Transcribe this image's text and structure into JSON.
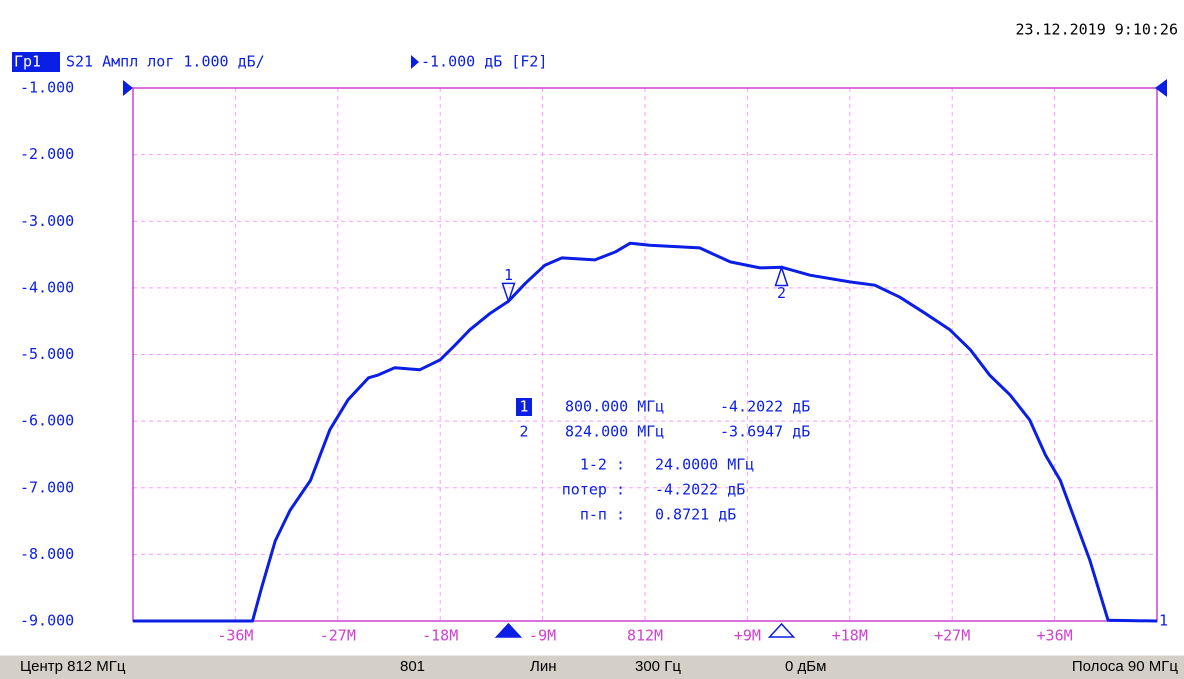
{
  "timestamp": "23.12.2019 9:10:26",
  "chart_data": {
    "type": "line",
    "trace_label": "Гр1",
    "title": "S21 Ампл лог 1.000 дБ/",
    "reference": "-1.000 дБ [F2]",
    "channel": "1",
    "xlim": [
      767,
      857
    ],
    "ylim": [
      -9,
      -1
    ],
    "grid": true,
    "xticks": [
      {
        "value": 776,
        "label": "-36M"
      },
      {
        "value": 785,
        "label": "-27M"
      },
      {
        "value": 794,
        "label": "-18M"
      },
      {
        "value": 803,
        "label": "-9M"
      },
      {
        "value": 812,
        "label": "812M"
      },
      {
        "value": 821,
        "label": "+9M"
      },
      {
        "value": 830,
        "label": "+18M"
      },
      {
        "value": 839,
        "label": "+27M"
      },
      {
        "value": 848,
        "label": "+36M"
      }
    ],
    "yticks": [
      {
        "value": -1,
        "label": "-1.000"
      },
      {
        "value": -2,
        "label": "-2.000"
      },
      {
        "value": -3,
        "label": "-3.000"
      },
      {
        "value": -4,
        "label": "-4.000"
      },
      {
        "value": -5,
        "label": "-5.000"
      },
      {
        "value": -6,
        "label": "-6.000"
      },
      {
        "value": -7,
        "label": "-7.000"
      },
      {
        "value": -8,
        "label": "-8.000"
      },
      {
        "value": -9,
        "label": "-9.000"
      }
    ],
    "x": [
      767,
      777.5,
      778.3,
      779.5,
      780.8,
      782.6,
      784.3,
      785.9,
      787.7,
      788.5,
      790.0,
      792.2,
      794.0,
      795.3,
      796.6,
      798.4,
      800,
      801.5,
      803.2,
      804.7,
      807.6,
      809.4,
      810.7,
      812.4,
      816.8,
      819.5,
      822.1,
      824,
      826.5,
      830,
      832.2,
      834.4,
      836.6,
      838.8,
      840.6,
      842.3,
      844.1,
      845.8,
      847.2,
      848.5,
      849.8,
      851.1,
      852.7,
      857
    ],
    "series": [
      {
        "color": "#0a1ee6",
        "values": [
          -9,
          -9,
          -8.5,
          -7.8,
          -7.34,
          -6.89,
          -6.13,
          -5.68,
          -5.35,
          -5.31,
          -5.2,
          -5.23,
          -5.08,
          -4.86,
          -4.63,
          -4.38,
          -4.2,
          -3.93,
          -3.66,
          -3.55,
          -3.58,
          -3.46,
          -3.33,
          -3.36,
          -3.4,
          -3.61,
          -3.7,
          -3.69,
          -3.81,
          -3.91,
          -3.96,
          -4.14,
          -4.38,
          -4.63,
          -4.93,
          -5.31,
          -5.61,
          -5.98,
          -6.51,
          -6.89,
          -7.49,
          -8.09,
          -8.99,
          -9
        ]
      }
    ],
    "markers": [
      {
        "name": "1",
        "x": 800,
        "y": -4.2022,
        "x_label": "800.000 МГц",
        "y_label": "-4.2022 дБ",
        "active": true
      },
      {
        "name": "2",
        "x": 824,
        "y": -3.6947,
        "x_label": "824.000 МГц",
        "y_label": "-3.6947 дБ",
        "active": false
      }
    ],
    "marker_stats": [
      {
        "label": "1-2 :",
        "value": "24.0000 МГц"
      },
      {
        "label": "потер :",
        "value": "-4.2022 дБ"
      },
      {
        "label": "п-п :",
        "value": "0.8721 дБ"
      }
    ]
  },
  "status_bar": [
    "Центр 812 МГц",
    "801",
    "Лин",
    "300 Гц",
    "0 дБм",
    "Полоса 90 МГц"
  ]
}
